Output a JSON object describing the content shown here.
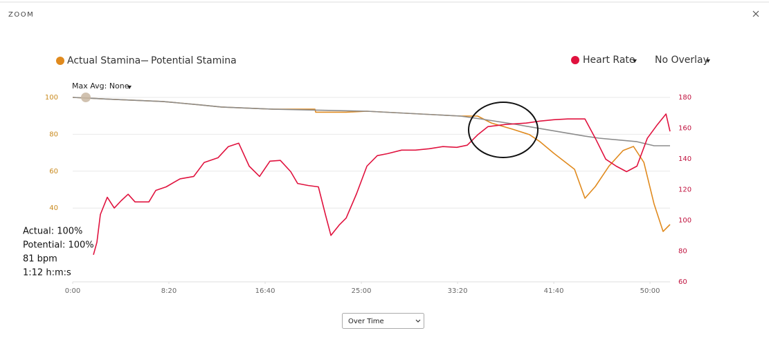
{
  "header": {
    "title": "ZOOM"
  },
  "chart_data": {
    "type": "line",
    "series": [
      {
        "name": "Actual Stamina",
        "color": "#e08a1e",
        "axis": "y",
        "x": [
          0,
          198,
          468,
          665,
          773,
          1043,
          1259,
          1263,
          1421,
          1529,
          2014,
          2104,
          2176,
          2284,
          2374,
          2428,
          2500,
          2608,
          2662,
          2716,
          2788,
          2860,
          2914,
          2968,
          3021,
          3068,
          3104
        ],
        "values": [
          100,
          99,
          97.8,
          95.9,
          94.8,
          93.6,
          93.6,
          92,
          92,
          92.5,
          89.9,
          89.9,
          86.1,
          82.8,
          79.8,
          76,
          69.7,
          61,
          45.3,
          51.7,
          62.9,
          71.2,
          73.4,
          64.8,
          42.3,
          27.3,
          31.1
        ]
      },
      {
        "name": "Potential Stamina",
        "color": "#8c8c8c",
        "axis": "y",
        "x": [
          0,
          198,
          468,
          665,
          773,
          1043,
          1529,
          2014,
          2140,
          2302,
          2428,
          2662,
          2734,
          2932,
          3021,
          3104
        ],
        "values": [
          100,
          99,
          97.8,
          95.9,
          94.8,
          93.6,
          92.5,
          89.9,
          88,
          85.4,
          83.1,
          79,
          77.9,
          76,
          73.8,
          73.8
        ]
      },
      {
        "name": "Heart Rate",
        "color": "#e0123e",
        "axis": "y2",
        "x": [
          108,
          126,
          144,
          180,
          216,
          252,
          288,
          324,
          396,
          432,
          486,
          558,
          629,
          683,
          755,
          809,
          863,
          917,
          971,
          1025,
          1079,
          1133,
          1169,
          1223,
          1277,
          1313,
          1342,
          1385,
          1421,
          1475,
          1529,
          1583,
          1637,
          1709,
          1781,
          1853,
          1924,
          1996,
          2050,
          2104,
          2158,
          2248,
          2356,
          2428,
          2500,
          2572,
          2662,
          2716,
          2770,
          2824,
          2878,
          2932,
          2986,
          3039,
          3083,
          3104
        ],
        "values": [
          77.6,
          85.7,
          103.8,
          115,
          108,
          112.8,
          117,
          112,
          112,
          119.5,
          121.8,
          127,
          128.6,
          137.6,
          140.7,
          148,
          150.2,
          135.3,
          128.6,
          138.5,
          139,
          131.7,
          124,
          122.7,
          121.8,
          103.8,
          90.2,
          97,
          101.5,
          117.3,
          135.3,
          142.1,
          143.4,
          145.7,
          145.7,
          146.6,
          148,
          147.5,
          148.9,
          155.6,
          161,
          162.4,
          163.3,
          164.6,
          165.5,
          166,
          166,
          153.4,
          139.8,
          135.3,
          131.7,
          135.3,
          153.4,
          162.4,
          169.2,
          157.9
        ]
      }
    ],
    "xlim": [
      0,
      3104
    ],
    "xticks": [
      {
        "value": 0,
        "label": "0:00"
      },
      {
        "value": 500,
        "label": "8:20"
      },
      {
        "value": 1000,
        "label": "16:40"
      },
      {
        "value": 1500,
        "label": "25:00"
      },
      {
        "value": 2000,
        "label": "33:20"
      },
      {
        "value": 2500,
        "label": "41:40"
      },
      {
        "value": 3000,
        "label": "50:00"
      }
    ],
    "ylim": [
      0,
      100
    ],
    "yticks": [
      40,
      60,
      80,
      100
    ],
    "y2lim": [
      60,
      180
    ],
    "y2ticks": [
      60,
      80,
      100,
      120,
      140,
      160,
      180
    ],
    "grid": true,
    "overlay_label": "Heart Rate",
    "overlay_select": "No Overlay",
    "max_avg": "Max Avg: None",
    "tooltip": [
      "Actual: 100%",
      "Potential: 100%",
      "81 bpm",
      "1:12 h:m:s"
    ],
    "mode_select": "Over Time"
  }
}
